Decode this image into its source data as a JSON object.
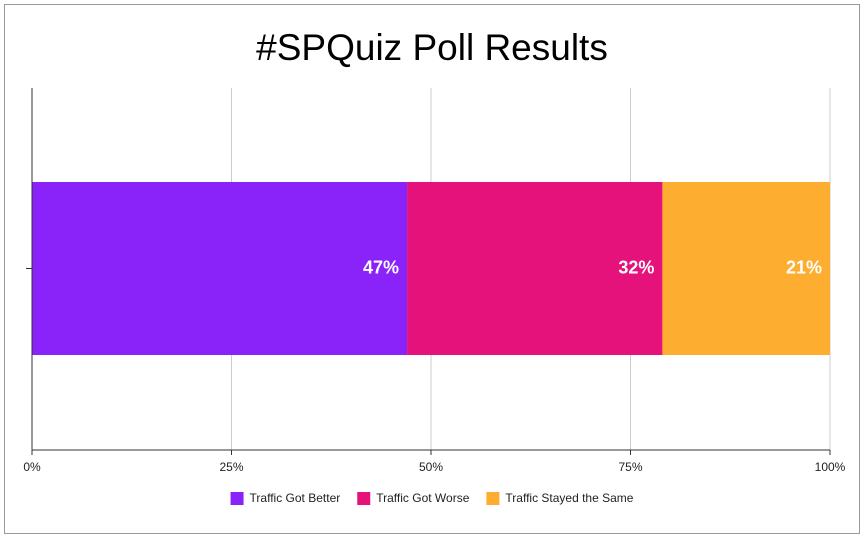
{
  "chart_data": {
    "type": "stacked-bar-horizontal",
    "title": "#SPQuiz Poll Results",
    "series": [
      {
        "name": "Traffic Got Better",
        "color": "#8a22fa",
        "values": [
          47
        ],
        "value_labels": [
          "47%"
        ]
      },
      {
        "name": "Traffic Got Worse",
        "color": "#e4127a",
        "values": [
          32
        ],
        "value_labels": [
          "32%"
        ]
      },
      {
        "name": "Traffic Stayed the Same",
        "color": "#fdad2f",
        "values": [
          21
        ],
        "value_labels": [
          "21%"
        ]
      }
    ],
    "xlim": [
      0,
      100
    ],
    "xticks": [
      {
        "value": 0,
        "label": "0%"
      },
      {
        "value": 25,
        "label": "25%"
      },
      {
        "value": 50,
        "label": "50%"
      },
      {
        "value": 75,
        "label": "75%"
      },
      {
        "value": 100,
        "label": "100%"
      }
    ],
    "grid": true,
    "legend": "bottom"
  }
}
